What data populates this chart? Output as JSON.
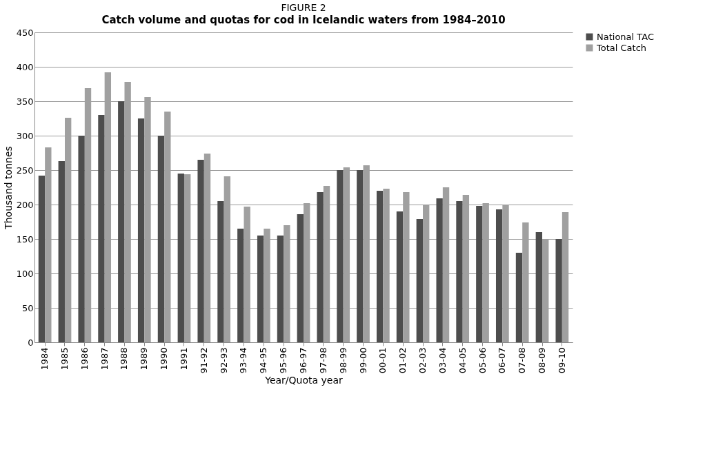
{
  "chart_data": {
    "type": "bar",
    "title": "FIGURE 2",
    "subtitle": "Catch volume and quotas for cod in Icelandic waters from 1984–2010",
    "xlabel": "Year/Quota year",
    "ylabel": "Thousand tonnes",
    "categories": [
      "1984",
      "1985",
      "1986",
      "1987",
      "1988",
      "1989",
      "1990",
      "1991",
      "91-92",
      "92-93",
      "93-94",
      "94-95",
      "95-96",
      "96-97",
      "97-98",
      "98-99",
      "99-00",
      "00-01",
      "01-02",
      "02-03",
      "03-04",
      "04-05",
      "05-06",
      "06-07",
      "07-08",
      "08-09",
      "09-10"
    ],
    "series": [
      {
        "name": "National TAC",
        "color": "#4d4d4d",
        "values": [
          242,
          263,
          300,
          330,
          350,
          325,
          300,
          245,
          265,
          205,
          165,
          155,
          155,
          186,
          218,
          250,
          250,
          220,
          190,
          179,
          209,
          205,
          198,
          193,
          130,
          160,
          150
        ]
      },
      {
        "name": "Total Catch",
        "color": "#a0a0a0",
        "values": [
          283,
          326,
          369,
          392,
          378,
          356,
          335,
          244,
          274,
          241,
          197,
          165,
          170,
          202,
          227,
          254,
          257,
          223,
          218,
          199,
          225,
          214,
          202,
          200,
          174,
          150,
          189
        ]
      }
    ],
    "ylim": [
      0,
      450
    ],
    "yticks": [
      0,
      50,
      100,
      150,
      200,
      250,
      300,
      350,
      400,
      450
    ],
    "grid": "y",
    "legend": "right"
  }
}
